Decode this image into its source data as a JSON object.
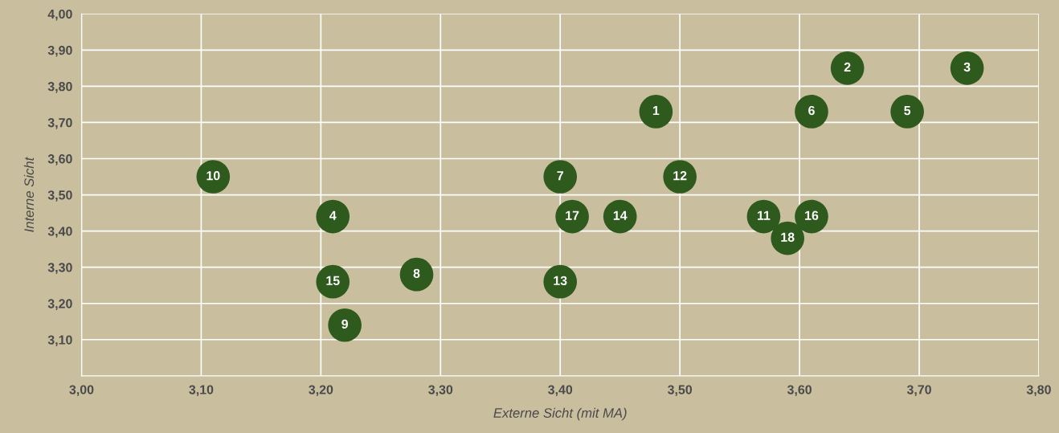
{
  "chart_data": {
    "type": "scatter",
    "xlabel": "Externe Sicht (mit MA)",
    "ylabel": "Interne Sicht",
    "x": [
      3.48,
      3.64,
      3.74,
      3.21,
      3.69,
      3.61,
      3.4,
      3.28,
      3.22,
      3.11,
      3.57,
      3.5,
      3.4,
      3.45,
      3.21,
      3.61,
      3.41,
      3.59
    ],
    "series": [
      {
        "color": "#2f5a1e",
        "values": [
          3.73,
          3.85,
          3.85,
          3.44,
          3.73,
          3.73,
          3.55,
          3.28,
          3.14,
          3.55,
          3.44,
          3.55,
          3.26,
          3.44,
          3.26,
          3.44,
          3.44,
          3.38
        ]
      }
    ],
    "annotations": [
      {
        "text": "1",
        "x": 3.48,
        "y": 3.73
      },
      {
        "text": "2",
        "x": 3.64,
        "y": 3.85
      },
      {
        "text": "3",
        "x": 3.74,
        "y": 3.85
      },
      {
        "text": "4",
        "x": 3.21,
        "y": 3.44
      },
      {
        "text": "5",
        "x": 3.69,
        "y": 3.73
      },
      {
        "text": "6",
        "x": 3.61,
        "y": 3.73
      },
      {
        "text": "7",
        "x": 3.4,
        "y": 3.55
      },
      {
        "text": "8",
        "x": 3.28,
        "y": 3.28
      },
      {
        "text": "9",
        "x": 3.22,
        "y": 3.14
      },
      {
        "text": "10",
        "x": 3.11,
        "y": 3.55
      },
      {
        "text": "11",
        "x": 3.57,
        "y": 3.44
      },
      {
        "text": "12",
        "x": 3.5,
        "y": 3.55
      },
      {
        "text": "13",
        "x": 3.4,
        "y": 3.26
      },
      {
        "text": "14",
        "x": 3.45,
        "y": 3.44
      },
      {
        "text": "15",
        "x": 3.21,
        "y": 3.26
      },
      {
        "text": "16",
        "x": 3.61,
        "y": 3.44
      },
      {
        "text": "17",
        "x": 3.41,
        "y": 3.44
      },
      {
        "text": "18",
        "x": 3.59,
        "y": 3.38
      }
    ],
    "xlim": [
      3.0,
      3.8
    ],
    "xticks": [
      {
        "value": 3.0,
        "label": "3,00"
      },
      {
        "value": 3.1,
        "label": "3,10"
      },
      {
        "value": 3.2,
        "label": "3,20"
      },
      {
        "value": 3.3,
        "label": "3,30"
      },
      {
        "value": 3.4,
        "label": "3,40"
      },
      {
        "value": 3.5,
        "label": "3,50"
      },
      {
        "value": 3.6,
        "label": "3,60"
      },
      {
        "value": 3.7,
        "label": "3,70"
      },
      {
        "value": 3.8,
        "label": "3,80"
      }
    ],
    "ylim": [
      3.0,
      4.0
    ],
    "yticks": [
      {
        "value": 3.1,
        "label": "3,10"
      },
      {
        "value": 3.2,
        "label": "3,20"
      },
      {
        "value": 3.3,
        "label": "3,30"
      },
      {
        "value": 3.4,
        "label": "3,40"
      },
      {
        "value": 3.5,
        "label": "3,50"
      },
      {
        "value": 3.6,
        "label": "3,60"
      },
      {
        "value": 3.7,
        "label": "3,70"
      },
      {
        "value": 3.8,
        "label": "3,80"
      },
      {
        "value": 3.9,
        "label": "3,90"
      },
      {
        "value": 4.0,
        "label": "4,00"
      }
    ],
    "grid": true,
    "marker": "circle",
    "legend": false
  }
}
